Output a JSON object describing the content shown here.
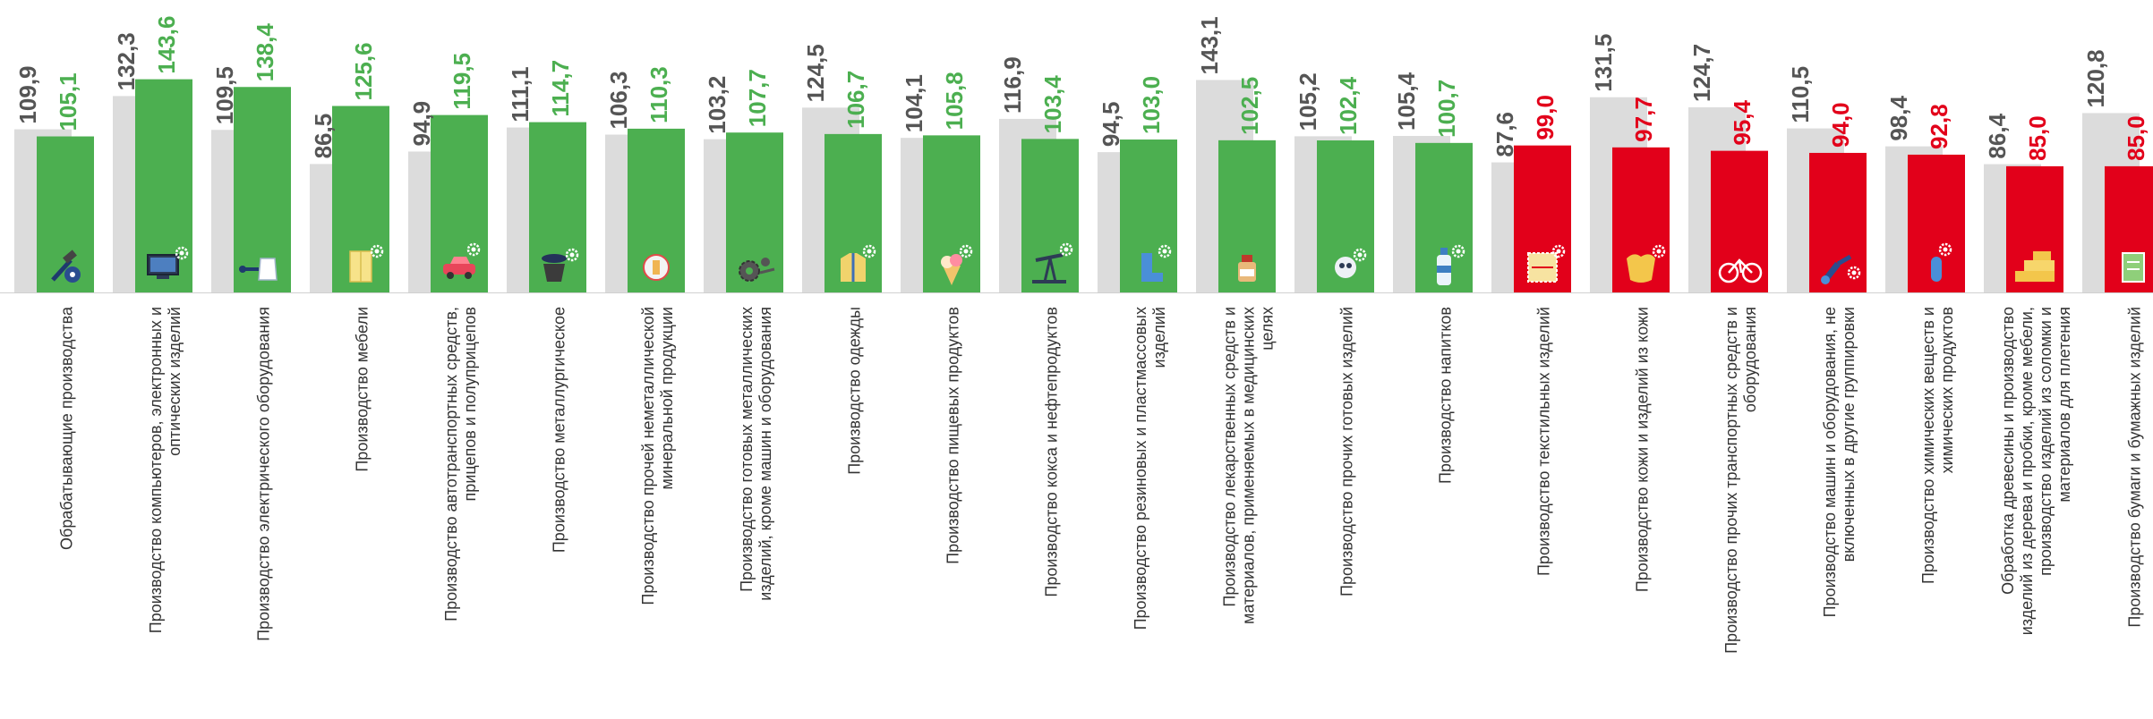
{
  "chart_data": {
    "type": "bar",
    "title": "",
    "xlabel": "",
    "ylabel": "",
    "ylim": [
      0,
      155
    ],
    "grid": false,
    "legend": "none",
    "colors": {
      "previous": "#dcdcdc",
      "up": "#4caf50",
      "down": "#e2001a",
      "previous_label": "#555555"
    },
    "categories": [
      "Обрабатывающие производства",
      "Производство компьютеров, электронных и оптических изделий",
      "Производство электрического оборудования",
      "Производство мебели",
      "Производство автотранспортных средств, прицепов и полуприцепов",
      "Производство металлургическое",
      "Производство прочей неметаллической минеральной продукции",
      "Производство готовых металлических изделий, кроме машин и оборудования",
      "Производство одежды",
      "Производство пищевых продуктов",
      "Производство кокса и нефтепродуктов",
      "Производство резиновых и пластмассовых изделий",
      "Производство лекарственных средств и материалов, применяемых в медицинских целях",
      "Производство прочих готовых изделий",
      "Производство напитков",
      "Производство текстильных изделий",
      "Производство кожи и изделий из кожи",
      "Производство прочих транспортных средств и оборудования",
      "Производство машин и оборудования, не включенных в другие группировки",
      "Производство химических веществ и химических продуктов",
      "Обработка древесины и производство изделий из дерева и пробки, кроме мебели, производство изделий из соломки и материалов для плетения",
      "Производство бумаги и бумажных изделий"
    ],
    "category_lines": [
      [
        "Обрабатывающие производства"
      ],
      [
        "Производство компьютеров, электронных и",
        "оптических изделий"
      ],
      [
        "Производство электрического оборудования"
      ],
      [
        "Производство мебели"
      ],
      [
        "Производство автотранспортных средств,",
        "прицепов и полуприцепов"
      ],
      [
        "Производство металлургическое"
      ],
      [
        "Производство прочей неметаллической",
        "минеральной продукции"
      ],
      [
        "Производство готовых металлических",
        "изделий, кроме машин и оборудования"
      ],
      [
        "Производство одежды"
      ],
      [
        "Производство пищевых продуктов"
      ],
      [
        "Производство кокса и нефтепродуктов"
      ],
      [
        "Производство резиновых и пластмассовых",
        "изделий"
      ],
      [
        "Производство лекарственных средств и",
        "материалов, применяемых в медицинских",
        "целях"
      ],
      [
        "Производство прочих готовых изделий"
      ],
      [
        "Производство напитков"
      ],
      [
        "Производство текстильных изделий"
      ],
      [
        "Производство кожи и изделий из кожи"
      ],
      [
        "Производство прочих транспортных средств и",
        "оборудования"
      ],
      [
        "Производство машин и оборудования, не",
        "включенных в другие группировки"
      ],
      [
        "Производство химических веществ и",
        "химических продуктов"
      ],
      [
        "Обработка древесины и производство",
        "изделий из дерева и пробки, кроме мебели,",
        "производство изделий из соломки и",
        "материалов для плетения"
      ],
      [
        "Производство бумаги и бумажных изделий"
      ]
    ],
    "series": [
      {
        "values": [
          109.9,
          132.3,
          109.5,
          86.5,
          94.9,
          111.1,
          106.3,
          103.2,
          124.5,
          104.1,
          116.9,
          94.5,
          143.1,
          105.2,
          105.4,
          87.6,
          131.5,
          124.7,
          110.5,
          98.4,
          86.4,
          120.8
        ],
        "labels": [
          "109,9",
          "132,3",
          "109,5",
          "86,5",
          "94,9",
          "111,1",
          "106,3",
          "103,2",
          "124,5",
          "104,1",
          "116,9",
          "94,5",
          "143,1",
          "105,2",
          "105,4",
          "87,6",
          "131,5",
          "124,7",
          "110,5",
          "98,4",
          "86,4",
          "120,8"
        ]
      },
      {
        "values": [
          105.1,
          143.6,
          138.4,
          125.6,
          119.5,
          114.7,
          110.3,
          107.7,
          106.7,
          105.8,
          103.4,
          103.0,
          102.5,
          102.4,
          100.7,
          99.0,
          97.7,
          95.4,
          94.0,
          92.8,
          85.0,
          85.0
        ],
        "labels": [
          "105,1",
          "143,6",
          "138,4",
          "125,6",
          "119,5",
          "114,7",
          "110,3",
          "107,7",
          "106,7",
          "105,8",
          "103,4",
          "103,0",
          "102,5",
          "102,4",
          "100,7",
          "99,0",
          "97,7",
          "95,4",
          "94,0",
          "92,8",
          "85,0",
          "85,0"
        ]
      }
    ]
  },
  "icons": [
    "hammer-gear-icon",
    "monitor-icon",
    "kettle-plug-icon",
    "cabinet-icon",
    "car-icon",
    "ladle-icon",
    "grinder-disc-icon",
    "gears-icon",
    "jacket-icon",
    "ice-cream-icon",
    "oil-pump-icon",
    "rubber-boot-icon",
    "medicine-bottle-icon",
    "toy-robot-icon",
    "water-bottle-icon",
    "fabric-swatch-icon",
    "leather-hide-icon",
    "bicycle-icon",
    "robot-arm-icon",
    "test-tube-icon",
    "lumber-stack-icon",
    "paper-sheet-icon"
  ]
}
